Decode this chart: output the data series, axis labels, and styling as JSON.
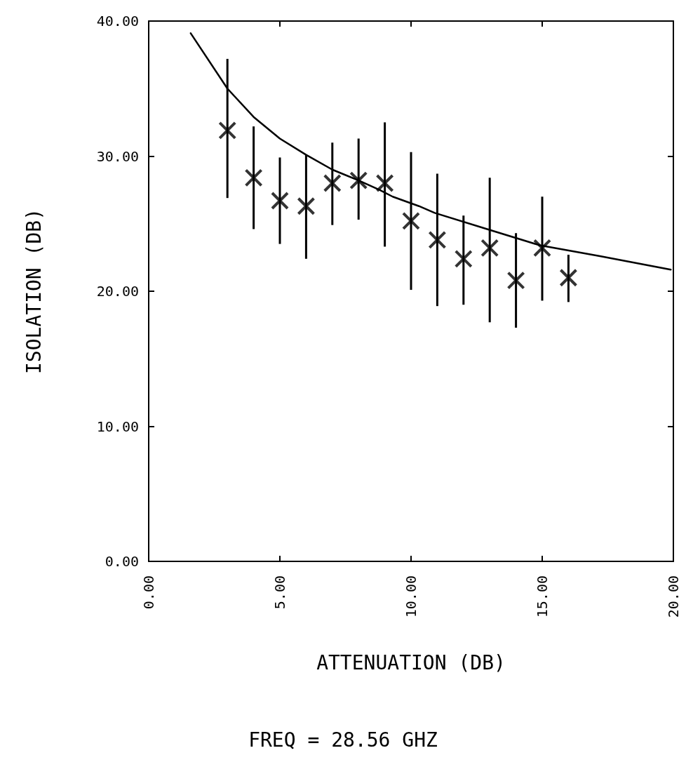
{
  "chart_data": {
    "type": "scatter",
    "xlabel": "ATTENUATION (DB)",
    "ylabel": "ISOLATION (DB)",
    "annotations": [
      "FREQ = 28.56 GHZ"
    ],
    "xlim": [
      0,
      20
    ],
    "ylim": [
      0,
      40
    ],
    "xticks": [
      {
        "value": 0,
        "label": "0.00"
      },
      {
        "value": 5,
        "label": "5.00"
      },
      {
        "value": 10,
        "label": "10.00"
      },
      {
        "value": 15,
        "label": "15.00"
      },
      {
        "value": 20,
        "label": "20.00"
      }
    ],
    "yticks": [
      {
        "value": 0,
        "label": "0.00"
      },
      {
        "value": 10,
        "label": "10.00"
      },
      {
        "value": 20,
        "label": "20.00"
      },
      {
        "value": 30,
        "label": "30.00"
      },
      {
        "value": 40,
        "label": "40.00"
      }
    ],
    "marker": "cross",
    "series": [
      {
        "color": "#000000",
        "x": [
          3,
          4,
          5,
          6,
          7,
          8,
          9,
          10,
          11,
          12,
          13,
          14,
          15,
          16
        ],
        "values": [
          31.9,
          28.4,
          26.7,
          26.3,
          28.0,
          28.2,
          28.0,
          25.2,
          23.8,
          22.4,
          23.2,
          20.8,
          23.2,
          21.0
        ],
        "errors": [
          [
            26.9,
            37.2
          ],
          [
            24.6,
            32.2
          ],
          [
            23.5,
            29.9
          ],
          [
            22.4,
            30.1
          ],
          [
            24.9,
            31.0
          ],
          [
            25.3,
            31.3
          ],
          [
            23.3,
            32.5
          ],
          [
            20.1,
            30.3
          ],
          [
            18.9,
            28.7
          ],
          [
            19.0,
            25.6
          ],
          [
            17.7,
            28.4
          ],
          [
            17.3,
            24.3
          ],
          [
            19.3,
            27.0
          ],
          [
            19.2,
            22.7
          ]
        ]
      },
      {
        "type": "line",
        "color": "#000000",
        "marker": "none",
        "line_style": "solid",
        "x": [
          1.6,
          3.0,
          4.0,
          5.0,
          6.0,
          7.0,
          8.0,
          8.8,
          9.3,
          10.3,
          10.9,
          12.9,
          14.9,
          17.2,
          19.9
        ],
        "values": [
          39.1,
          35.0,
          32.9,
          31.3,
          30.1,
          29.0,
          28.2,
          27.5,
          27.0,
          26.3,
          25.8,
          24.6,
          23.4,
          22.6,
          21.6
        ]
      }
    ]
  }
}
